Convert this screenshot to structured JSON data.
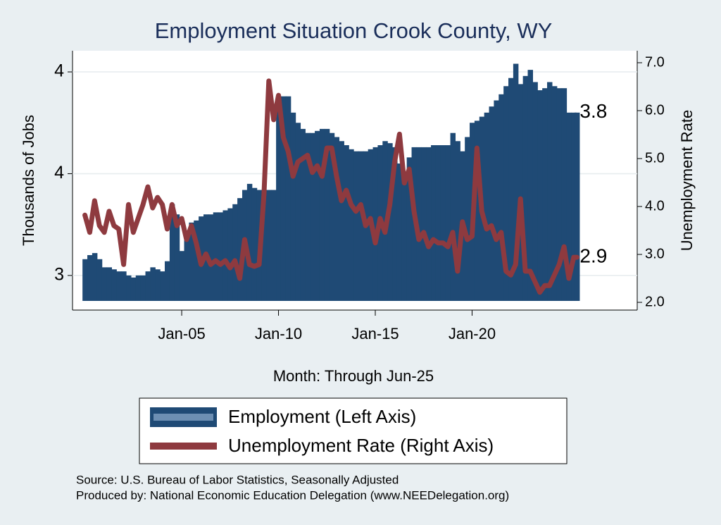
{
  "chart_data": {
    "type": "bar_line",
    "title": "Employment Situation Crook  County, WY",
    "x_label": "Month: Through Jun-25",
    "y_label": "Thousands of Jobs",
    "y2_label": "Unemployment Rate",
    "sources": [
      "Source: U.S. Bureau of Labor Statistics, Seasonally Adjusted",
      "Produced by: National Economic Education Delegation (www.NEEDelegation.org)"
    ],
    "annotations": [
      "3.8",
      "2.9"
    ],
    "xlim": [
      1999.36,
      2028.53
    ],
    "xticks": [
      {
        "value": 2005,
        "label": "Jan-05"
      },
      {
        "value": 2010,
        "label": "Jan-10"
      },
      {
        "value": 2015,
        "label": "Jan-15"
      },
      {
        "value": 2020,
        "label": "Jan-20"
      }
    ],
    "ylim": [
      2.875,
      4.104
    ],
    "yticks": [
      3,
      {
        "value": 3.5,
        "label": "4"
      },
      4
    ],
    "y2lim": [
      2.03,
      7.25
    ],
    "y2ticks": [
      {
        "value": 2,
        "label": "2.0"
      },
      {
        "value": 3,
        "label": "3.0"
      },
      {
        "value": 4,
        "label": "4.0"
      },
      {
        "value": 5,
        "label": "5.0"
      },
      {
        "value": 6,
        "label": "6.0"
      },
      {
        "value": 7,
        "label": "7.0"
      }
    ],
    "grid": true,
    "x": [
      2000,
      2000.25,
      2000.5,
      2000.75,
      2001,
      2001.25,
      2001.5,
      2001.75,
      2002,
      2002.25,
      2002.5,
      2002.75,
      2003,
      2003.25,
      2003.5,
      2003.75,
      2004,
      2004.25,
      2004.5,
      2004.75,
      2005,
      2005.25,
      2005.5,
      2005.75,
      2006,
      2006.25,
      2006.5,
      2006.75,
      2007,
      2007.25,
      2007.5,
      2007.75,
      2008,
      2008.25,
      2008.5,
      2008.75,
      2009,
      2009.25,
      2009.5,
      2009.75,
      2010,
      2010.25,
      2010.5,
      2010.75,
      2011,
      2011.25,
      2011.5,
      2011.75,
      2012,
      2012.25,
      2012.5,
      2012.75,
      2013,
      2013.25,
      2013.5,
      2013.75,
      2014,
      2014.25,
      2014.5,
      2014.75,
      2015,
      2015.25,
      2015.5,
      2015.75,
      2016,
      2016.25,
      2016.5,
      2016.75,
      2017,
      2017.25,
      2017.5,
      2017.75,
      2018,
      2018.25,
      2018.5,
      2018.75,
      2019,
      2019.25,
      2019.5,
      2019.75,
      2020,
      2020.25,
      2020.5,
      2020.75,
      2021,
      2021.25,
      2021.5,
      2021.75,
      2022,
      2022.25,
      2022.5,
      2022.75,
      2023,
      2023.25,
      2023.5,
      2023.75,
      2024,
      2024.25,
      2024.5,
      2024.75,
      2025,
      2025.25,
      2025.417
    ],
    "series": [
      {
        "name": "Employment (Left Axis)",
        "type": "bar",
        "color": "#1f4a75",
        "values": [
          3.08,
          3.1,
          3.11,
          3.08,
          3.04,
          3.04,
          3.03,
          3.02,
          3.02,
          3.0,
          2.99,
          3.0,
          3.0,
          3.02,
          3.04,
          3.03,
          3.02,
          3.07,
          3.35,
          3.3,
          3.12,
          3.2,
          3.26,
          3.27,
          3.29,
          3.3,
          3.3,
          3.31,
          3.31,
          3.32,
          3.33,
          3.35,
          3.38,
          3.42,
          3.45,
          3.43,
          3.42,
          3.42,
          3.42,
          3.42,
          3.88,
          3.88,
          3.88,
          3.8,
          3.75,
          3.72,
          3.7,
          3.7,
          3.71,
          3.72,
          3.72,
          3.7,
          3.68,
          3.66,
          3.64,
          3.62,
          3.61,
          3.61,
          3.61,
          3.62,
          3.63,
          3.64,
          3.66,
          3.65,
          3.63,
          3.55,
          3.49,
          3.58,
          3.63,
          3.63,
          3.63,
          3.63,
          3.64,
          3.64,
          3.64,
          3.64,
          3.7,
          3.66,
          3.61,
          3.68,
          3.75,
          3.76,
          3.78,
          3.8,
          3.83,
          3.86,
          3.89,
          3.93,
          3.97,
          4.04,
          3.94,
          3.98,
          4.01,
          3.95,
          3.91,
          3.92,
          3.95,
          3.93,
          3.92,
          3.92,
          3.8,
          3.8,
          3.8
        ]
      },
      {
        "name": "Unemployment Rate (Right Axis)",
        "type": "line",
        "axis": "y2",
        "color": "#8e3a3f",
        "values": [
          3.82,
          3.46,
          4.12,
          3.6,
          3.46,
          3.9,
          3.6,
          3.53,
          2.79,
          4.04,
          3.46,
          3.75,
          4.04,
          4.41,
          3.97,
          4.19,
          4.04,
          3.53,
          4.04,
          3.6,
          3.75,
          3.31,
          3.6,
          3.24,
          2.79,
          3.01,
          2.79,
          2.87,
          2.79,
          2.87,
          2.72,
          2.87,
          2.5,
          3.31,
          2.79,
          2.75,
          2.79,
          4.26,
          6.62,
          5.81,
          6.32,
          5.44,
          5.15,
          4.63,
          4.93,
          5.0,
          5.07,
          4.71,
          4.85,
          4.63,
          5.22,
          5.22,
          4.63,
          4.12,
          4.34,
          4.04,
          3.9,
          4.04,
          3.6,
          3.75,
          3.24,
          3.75,
          3.46,
          4.04,
          4.93,
          5.51,
          4.49,
          4.78,
          3.9,
          3.31,
          3.46,
          3.16,
          3.31,
          3.24,
          3.24,
          3.16,
          3.46,
          2.65,
          3.68,
          3.31,
          3.38,
          5.22,
          3.9,
          3.53,
          3.6,
          3.31,
          3.46,
          2.65,
          2.57,
          2.79,
          4.16,
          2.65,
          2.65,
          2.43,
          2.21,
          2.35,
          2.35,
          2.57,
          2.79,
          3.16,
          2.5,
          2.94,
          2.94
        ]
      }
    ]
  }
}
